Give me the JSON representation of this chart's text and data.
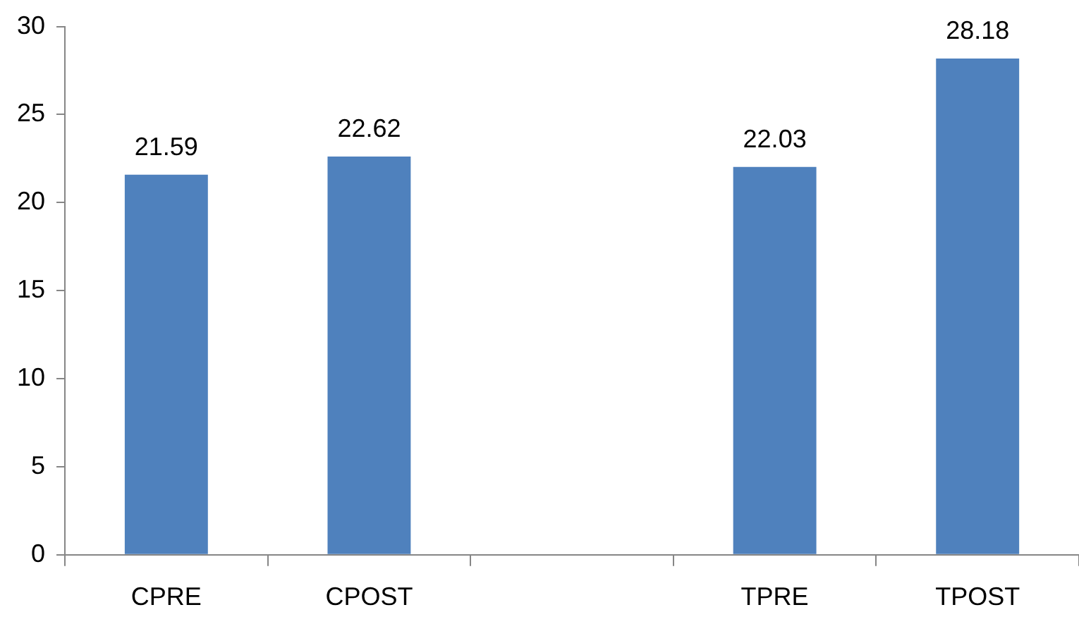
{
  "chart_data": {
    "type": "bar",
    "categories": [
      "CPRE",
      "CPOST",
      null,
      "TPRE",
      "TPOST"
    ],
    "values": [
      21.59,
      22.62,
      null,
      22.03,
      28.18
    ],
    "color": "#4f81bd",
    "ylim": [
      0,
      30
    ],
    "yticks": [
      0,
      5,
      10,
      15,
      20,
      25,
      30
    ],
    "grid": false,
    "legend": false,
    "data_labels": true
  }
}
